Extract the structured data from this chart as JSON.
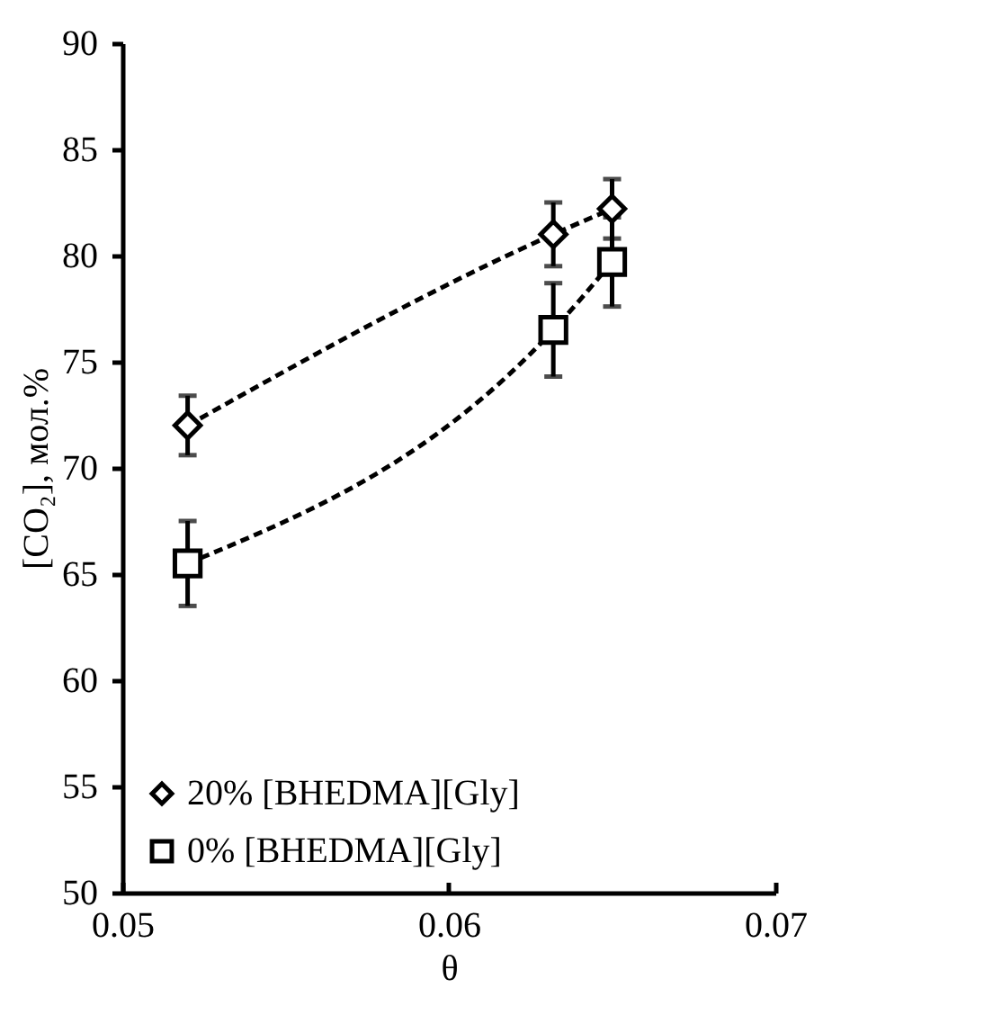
{
  "chart_data": {
    "type": "line",
    "xlabel": "θ",
    "ylabel": "[CO₂], мол.%",
    "xlim": [
      0.05,
      0.07
    ],
    "xticks": [
      0.05,
      0.06,
      0.07
    ],
    "ylim": [
      50,
      90
    ],
    "yticks": [
      50,
      55,
      60,
      65,
      70,
      75,
      80,
      85,
      90
    ],
    "grid": false,
    "legend": "bottom left",
    "line_style": "dashed",
    "series": [
      {
        "name": "20% [BHEDMA][Gly]",
        "color": "#000000",
        "marker": "diamond",
        "x": [
          0.052,
          0.0632,
          0.065
        ],
        "values": [
          72,
          81,
          82.2
        ],
        "errors": [
          1.4,
          1.5,
          1.4
        ]
      },
      {
        "name": "0% [BHEDMA][Gly]",
        "color": "#000000",
        "marker": "square",
        "x": [
          0.052,
          0.0632,
          0.065
        ],
        "values": [
          65.5,
          76.5,
          79.7
        ],
        "errors": [
          2,
          2.2,
          2.1
        ]
      }
    ]
  }
}
